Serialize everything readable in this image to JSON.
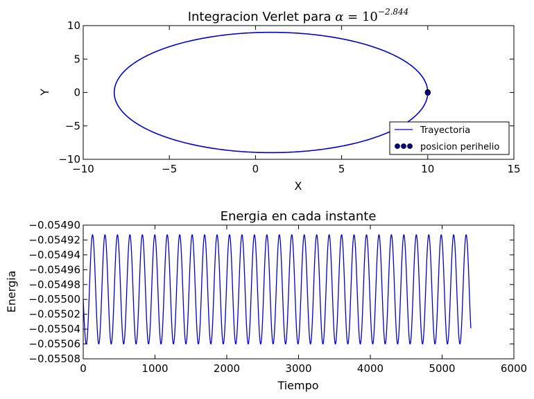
{
  "chart_data": [
    {
      "type": "line",
      "title_prefix": "Integracion Verlet para ",
      "title_math_alpha": "α",
      "title_math_eq": " = 10",
      "title_math_exp": "−2.844",
      "xlabel": "X",
      "ylabel": "Y",
      "xlim": [
        -10,
        15
      ],
      "ylim": [
        -10,
        10
      ],
      "xticks": [
        -10,
        -5,
        0,
        5,
        10,
        15
      ],
      "yticks": [
        -10,
        -5,
        0,
        5,
        10
      ],
      "xtick_labels": [
        "−10",
        "−5",
        "0",
        "5",
        "10",
        "15"
      ],
      "ytick_labels": [
        "−10",
        "−5",
        "0",
        "5",
        "10"
      ],
      "grid": false,
      "legend_position": "lower-right",
      "series": [
        {
          "name": "Trayectoria",
          "kind": "line",
          "color": "#0000cc",
          "shape": "ellipse",
          "center": [
            0.9,
            0
          ],
          "semi_axis_x": 9.1,
          "semi_axis_y": 9.0
        },
        {
          "name": "posicion perihelio",
          "kind": "scatter",
          "color": "#000080",
          "points": [
            [
              10.0,
              0.05
            ],
            [
              10.0,
              0.0
            ],
            [
              10.0,
              -0.05
            ]
          ]
        }
      ]
    },
    {
      "type": "line",
      "title": "Energia en cada instante",
      "xlabel": "Tiempo",
      "ylabel": "Energia",
      "xlim": [
        0,
        6000
      ],
      "ylim": [
        -0.05508,
        -0.0549
      ],
      "xticks": [
        0,
        1000,
        2000,
        3000,
        4000,
        5000,
        6000
      ],
      "yticks": [
        -0.05508,
        -0.05506,
        -0.05504,
        -0.05502,
        -0.055,
        -0.05498,
        -0.05496,
        -0.05494,
        -0.05492,
        -0.0549
      ],
      "xtick_labels": [
        "0",
        "1000",
        "2000",
        "3000",
        "4000",
        "5000",
        "6000"
      ],
      "ytick_labels": [
        "−0.05508",
        "−0.05506",
        "−0.05504",
        "−0.05502",
        "−0.05500",
        "−0.05498",
        "−0.05496",
        "−0.05494",
        "−0.05492",
        "−0.05490"
      ],
      "grid": false,
      "series": [
        {
          "kind": "line",
          "color": "#0000cc",
          "x_start": 0,
          "x_end": 5400,
          "y_start": -0.055,
          "y_min": -0.05506,
          "y_max": -0.054913,
          "period": 173.5,
          "first_min_at": 43
        }
      ]
    }
  ]
}
